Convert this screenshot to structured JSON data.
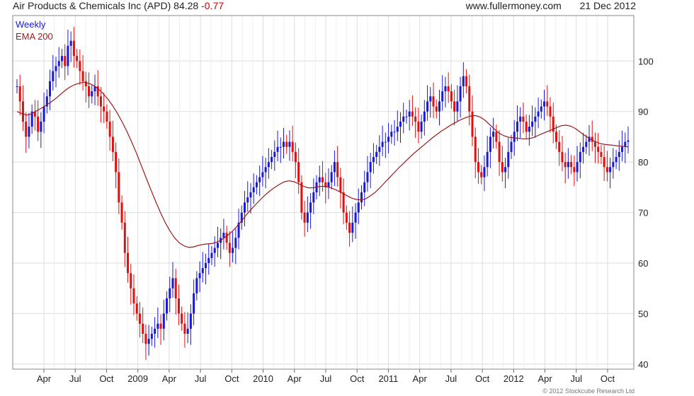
{
  "header": {
    "title": "Air Products & Chemicals Inc (APD) 84.28",
    "change": "-0.77",
    "source": "www.fullermoney.com",
    "date": "21 Dec 2012"
  },
  "legend": {
    "weekly": "Weekly",
    "ema": "EMA 200"
  },
  "copyright": "© 2012 Stockcube Research Ltd",
  "colors": {
    "up": "#1a1ad6",
    "down": "#e01010",
    "ema": "#9b1a1a",
    "grid": "#dddddd",
    "frame": "#888888"
  },
  "chart_data": {
    "type": "candlestick",
    "title": "Air Products & Chemicals Inc (APD)",
    "interval": "weekly",
    "ylim": [
      39,
      109
    ],
    "yticks": [
      40,
      50,
      60,
      70,
      80,
      90,
      100
    ],
    "x_ticks": [
      "Apr",
      "Jul",
      "Oct",
      "2009",
      "Apr",
      "Jul",
      "Oct",
      "2010",
      "Apr",
      "Jul",
      "Oct",
      "2011",
      "Apr",
      "Jul",
      "Oct",
      "2012",
      "Apr",
      "Jul",
      "Oct"
    ],
    "close_series": [
      95,
      92,
      88,
      85,
      87,
      90,
      89,
      86,
      88,
      91,
      93,
      96,
      98,
      99,
      100,
      101,
      99,
      103,
      104,
      101,
      100,
      98,
      96,
      95,
      93,
      94,
      95,
      93,
      91,
      90,
      88,
      85,
      82,
      78,
      72,
      68,
      62,
      58,
      55,
      52,
      50,
      48,
      46,
      44,
      45,
      46,
      47,
      48,
      47,
      50,
      53,
      55,
      57,
      53,
      50,
      48,
      46,
      47,
      50,
      54,
      57,
      58,
      59,
      60,
      61,
      62,
      63,
      64,
      65,
      66,
      64,
      62,
      63,
      65,
      68,
      70,
      72,
      73,
      74,
      75,
      76,
      77,
      78,
      79,
      80,
      81,
      82,
      83,
      83,
      84,
      83,
      84,
      82,
      80,
      76,
      70,
      68,
      70,
      72,
      74,
      76,
      77,
      76,
      75,
      76,
      78,
      80,
      77,
      74,
      70,
      68,
      66,
      68,
      70,
      72,
      74,
      76,
      78,
      80,
      81,
      82,
      83,
      84,
      84,
      85,
      86,
      86,
      87,
      88,
      89,
      89,
      90,
      89,
      88,
      86,
      88,
      90,
      92,
      93,
      91,
      90,
      92,
      94,
      95,
      94,
      92,
      90,
      92,
      95,
      97,
      95,
      90,
      85,
      80,
      78,
      77,
      79,
      82,
      85,
      86,
      84,
      80,
      78,
      79,
      82,
      84,
      86,
      88,
      89,
      88,
      86,
      87,
      88,
      89,
      90,
      91,
      92,
      91,
      89,
      86,
      84,
      82,
      80,
      79,
      80,
      79,
      78,
      80,
      82,
      83,
      84,
      85,
      84,
      83,
      82,
      81,
      79,
      78,
      79,
      80,
      81,
      82,
      83,
      84,
      84.28
    ],
    "ema_200": [
      90,
      89.6,
      89.3,
      89.5,
      90.1,
      90.6,
      91.2,
      91.8,
      92.5,
      93.3,
      94.1,
      94.8,
      95.3,
      95.6,
      95.8,
      95.6,
      95.2,
      94.5,
      93.6,
      92.5,
      91.2,
      89.7,
      88.0,
      86.1,
      84.0,
      81.8,
      79.4,
      77.0,
      74.6,
      72.3,
      70.1,
      68.1,
      66.4,
      65.0,
      64.0,
      63.4,
      63.1,
      63.2,
      63.5,
      63.7,
      63.8,
      63.9,
      64.2,
      64.7,
      65.4,
      66.2,
      67.2,
      68.3,
      69.5,
      70.6,
      71.6,
      72.6,
      73.5,
      74.3,
      75.0,
      75.6,
      76.1,
      76.3,
      76.1,
      75.7,
      75.2,
      74.9,
      74.9,
      75.1,
      75.2,
      75.1,
      74.8,
      74.4,
      73.9,
      73.4,
      72.9,
      72.6,
      72.5,
      72.7,
      73.3,
      74.0,
      74.9,
      75.9,
      76.9,
      77.9,
      78.9,
      79.8,
      80.7,
      81.6,
      82.4,
      83.2,
      84.0,
      84.8,
      85.5,
      86.2,
      86.8,
      87.4,
      87.9,
      88.4,
      88.8,
      89.1,
      89.2,
      88.9,
      88.3,
      87.4,
      86.5,
      85.7,
      85.2,
      84.9,
      84.8,
      84.7,
      84.6,
      84.6,
      84.8,
      85.2,
      85.6,
      86.0,
      86.4,
      86.8,
      87.2,
      87.3,
      87.1,
      86.6,
      85.9,
      85.2,
      84.6,
      84.1,
      83.7,
      83.5,
      83.4,
      83.3,
      83.2,
      83.1,
      83.0
    ]
  }
}
